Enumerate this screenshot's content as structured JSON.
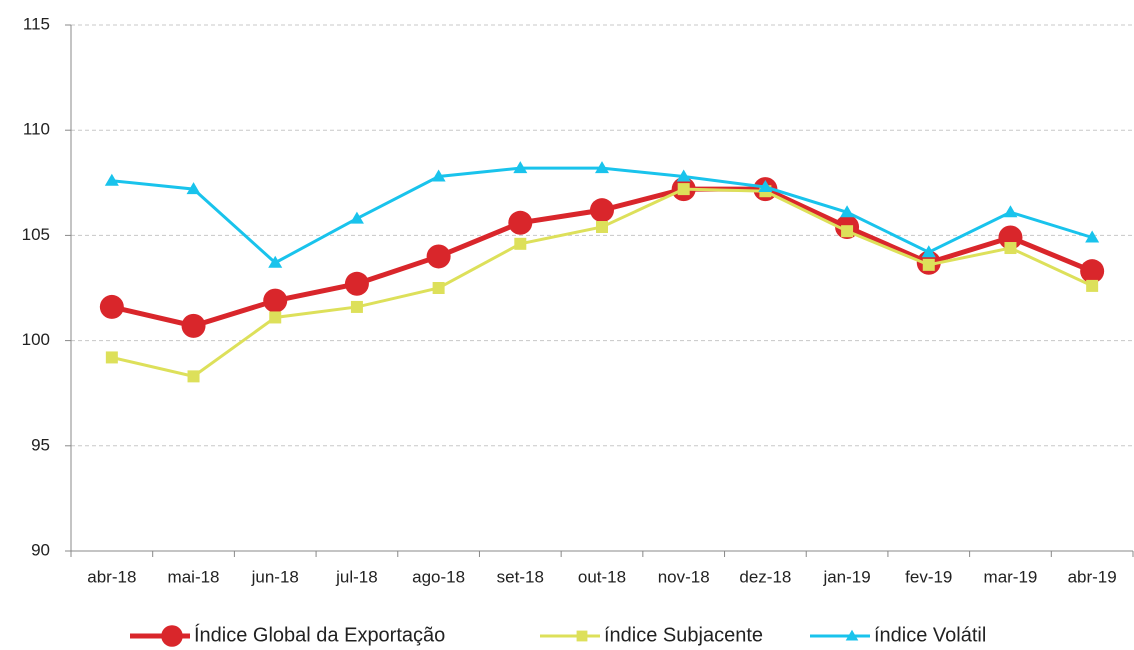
{
  "chart_data": {
    "type": "line",
    "categories": [
      "abr-18",
      "mai-18",
      "jun-18",
      "jul-18",
      "ago-18",
      "set-18",
      "out-18",
      "nov-18",
      "dez-18",
      "jan-19",
      "fev-19",
      "mar-19",
      "abr-19"
    ],
    "series": [
      {
        "name": "Índice Global da Exportação",
        "color": "#d9262b",
        "marker": "circle",
        "values": [
          101.6,
          100.7,
          101.9,
          102.7,
          104.0,
          105.6,
          106.2,
          107.2,
          107.2,
          105.4,
          103.7,
          104.9,
          103.3
        ]
      },
      {
        "name": "índice Subjacente",
        "color": "#dde05a",
        "marker": "square",
        "values": [
          99.2,
          98.3,
          101.1,
          101.6,
          102.5,
          104.6,
          105.4,
          107.2,
          107.1,
          105.2,
          103.6,
          104.4,
          102.6
        ]
      },
      {
        "name": "índice Volátil",
        "color": "#19c3ec",
        "marker": "triangle",
        "values": [
          107.6,
          107.2,
          103.7,
          105.8,
          107.8,
          108.2,
          108.2,
          107.8,
          107.3,
          106.1,
          104.2,
          106.1,
          104.9
        ]
      }
    ],
    "ylim": [
      90,
      115
    ],
    "yticks": [
      90,
      95,
      100,
      105,
      110,
      115
    ],
    "grid": true,
    "legend": "bottom"
  }
}
